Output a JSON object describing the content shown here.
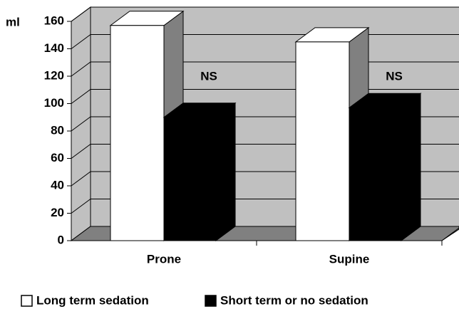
{
  "chart_data": {
    "type": "bar3d",
    "y_label": "ml",
    "categories": [
      "Prone",
      "Supine"
    ],
    "series": [
      {
        "name": "Long term sedation",
        "color": "#ffffff",
        "values": [
          157,
          145
        ]
      },
      {
        "name": "Short term or no sedation",
        "color": "#000000",
        "values": [
          90,
          97
        ]
      }
    ],
    "annotations": [
      "NS",
      "NS"
    ],
    "ylim": [
      0,
      160
    ],
    "yticks": [
      0,
      20,
      40,
      60,
      80,
      100,
      120,
      140,
      160
    ],
    "grid": true
  }
}
